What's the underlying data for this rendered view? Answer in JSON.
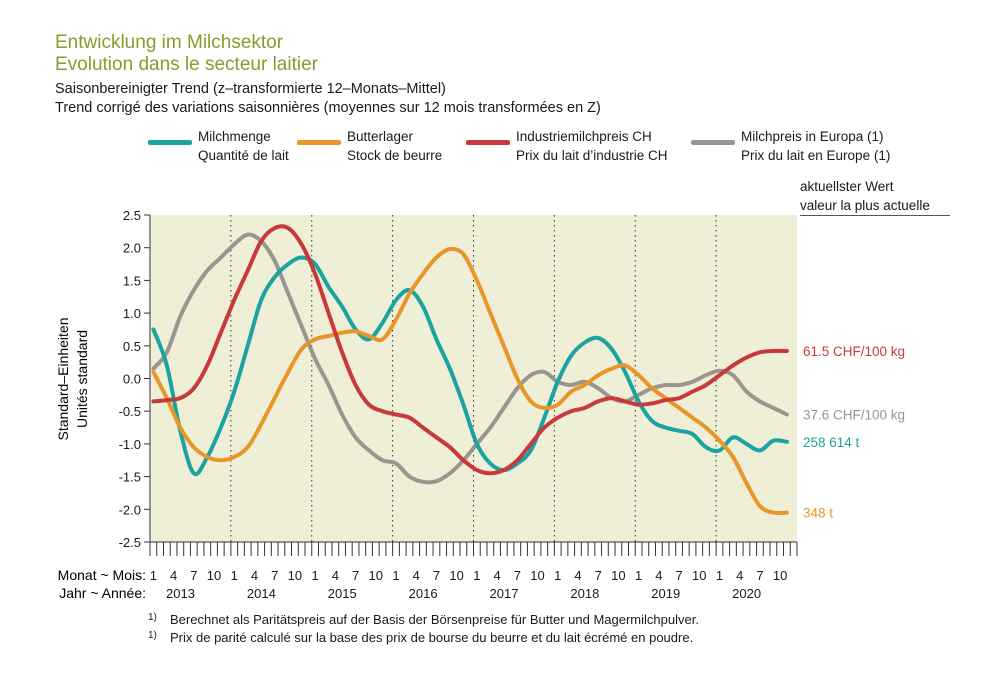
{
  "header": {
    "title_de": "Entwicklung im Milchsektor",
    "title_fr": "Evolution dans le secteur laitier",
    "subtitle_de": "Saisonbereinigter Trend (z–transformierte 12–Monats–Mittel)",
    "subtitle_fr": "Trend corrigé des variations saisonnières (moyennes sur 12 mois transformées en Z)"
  },
  "legend": [
    {
      "de": "Milchmenge",
      "fr": "Quantité de lait",
      "color": "#1aa3a0"
    },
    {
      "de": "Butterlager",
      "fr": "Stock de beurre",
      "color": "#e8952a"
    },
    {
      "de": "Industriemilchpreis CH",
      "fr": "Prix du lait d’industrie CH",
      "color": "#c8393c"
    },
    {
      "de": "Milchpreis in Europa (1)",
      "fr": "Prix du lait en Europe (1)",
      "color": "#9a9590"
    }
  ],
  "current_header": {
    "de": "aktuellster Wert",
    "fr": "valeur la plus actuelle"
  },
  "footnotes": [
    {
      "mark": "1)",
      "text": "Berechnet als Paritätspreis auf der Basis der Börsenpreise für Butter und Magermilchpulver."
    },
    {
      "mark": "1)",
      "text": "Prix de parité calculé sur la base des prix de bourse du beurre et du lait écrémé en poudre."
    }
  ],
  "chart_data": {
    "type": "line",
    "ylabel_de": "Standard–Einheiten",
    "ylabel_fr": "Unités standard",
    "month_row_label": "Monat ~ Mois:",
    "year_row_label": "Jahr ~ Année:",
    "ylim": [
      -2.5,
      2.5
    ],
    "yticks": [
      "2.5",
      "2.0",
      "1.5",
      "1.0",
      "0.5",
      "0.0",
      "-0.5",
      "-1.0",
      "-1.5",
      "-2.0",
      "-2.5"
    ],
    "ytick_values": [
      2.5,
      2.0,
      1.5,
      1.0,
      0.5,
      0.0,
      -0.5,
      -1.0,
      -1.5,
      -2.0,
      -2.5
    ],
    "years": [
      "2013",
      "2014",
      "2015",
      "2016",
      "2017",
      "2018",
      "2019",
      "2020"
    ],
    "month_ticks": [
      "1",
      "4",
      "7",
      "10"
    ],
    "x_start": "2013-01",
    "x_end": "2020-12",
    "plot_bg": "#eeefd6",
    "grid": "vertical dotted at year boundaries",
    "series": [
      {
        "name": "Milchmenge",
        "color": "#1aa3a0",
        "current_label": "258 614 t",
        "points": [
          [
            "2013-01",
            0.75
          ],
          [
            "2013-03",
            0.2
          ],
          [
            "2013-05",
            -0.8
          ],
          [
            "2013-07",
            -1.45
          ],
          [
            "2013-09",
            -1.2
          ],
          [
            "2013-11",
            -0.75
          ],
          [
            "2014-01",
            -0.2
          ],
          [
            "2014-03",
            0.5
          ],
          [
            "2014-05",
            1.2
          ],
          [
            "2014-07",
            1.55
          ],
          [
            "2014-09",
            1.75
          ],
          [
            "2014-11",
            1.85
          ],
          [
            "2015-01",
            1.75
          ],
          [
            "2015-03",
            1.4
          ],
          [
            "2015-05",
            1.1
          ],
          [
            "2015-07",
            0.75
          ],
          [
            "2015-09",
            0.6
          ],
          [
            "2015-11",
            0.85
          ],
          [
            "2016-01",
            1.2
          ],
          [
            "2016-03",
            1.35
          ],
          [
            "2016-05",
            1.1
          ],
          [
            "2016-07",
            0.6
          ],
          [
            "2016-09",
            0.15
          ],
          [
            "2016-11",
            -0.4
          ],
          [
            "2017-01",
            -1.0
          ],
          [
            "2017-03",
            -1.3
          ],
          [
            "2017-05",
            -1.4
          ],
          [
            "2017-07",
            -1.3
          ],
          [
            "2017-09",
            -1.1
          ],
          [
            "2017-11",
            -0.6
          ],
          [
            "2018-01",
            -0.05
          ],
          [
            "2018-03",
            0.35
          ],
          [
            "2018-05",
            0.55
          ],
          [
            "2018-07",
            0.62
          ],
          [
            "2018-09",
            0.45
          ],
          [
            "2018-11",
            0.1
          ],
          [
            "2019-01",
            -0.35
          ],
          [
            "2019-03",
            -0.65
          ],
          [
            "2019-05",
            -0.75
          ],
          [
            "2019-07",
            -0.8
          ],
          [
            "2019-09",
            -0.85
          ],
          [
            "2019-11",
            -1.05
          ],
          [
            "2020-01",
            -1.1
          ],
          [
            "2020-03",
            -0.9
          ],
          [
            "2020-05",
            -1.0
          ],
          [
            "2020-07",
            -1.1
          ],
          [
            "2020-09",
            -0.95
          ],
          [
            "2020-11",
            -0.97
          ]
        ]
      },
      {
        "name": "Butterlager",
        "color": "#e8952a",
        "current_label": "348 t",
        "points": [
          [
            "2013-01",
            0.1
          ],
          [
            "2013-03",
            -0.3
          ],
          [
            "2013-05",
            -0.75
          ],
          [
            "2013-07",
            -1.05
          ],
          [
            "2013-09",
            -1.2
          ],
          [
            "2013-11",
            -1.25
          ],
          [
            "2014-01",
            -1.2
          ],
          [
            "2014-03",
            -1.05
          ],
          [
            "2014-05",
            -0.7
          ],
          [
            "2014-07",
            -0.3
          ],
          [
            "2014-09",
            0.1
          ],
          [
            "2014-11",
            0.45
          ],
          [
            "2015-01",
            0.6
          ],
          [
            "2015-03",
            0.65
          ],
          [
            "2015-05",
            0.7
          ],
          [
            "2015-07",
            0.72
          ],
          [
            "2015-09",
            0.65
          ],
          [
            "2015-11",
            0.6
          ],
          [
            "2016-01",
            0.9
          ],
          [
            "2016-03",
            1.3
          ],
          [
            "2016-05",
            1.6
          ],
          [
            "2016-07",
            1.85
          ],
          [
            "2016-09",
            1.98
          ],
          [
            "2016-11",
            1.9
          ],
          [
            "2017-01",
            1.5
          ],
          [
            "2017-03",
            1.0
          ],
          [
            "2017-05",
            0.5
          ],
          [
            "2017-07",
            0.0
          ],
          [
            "2017-09",
            -0.35
          ],
          [
            "2017-11",
            -0.45
          ],
          [
            "2018-01",
            -0.4
          ],
          [
            "2018-03",
            -0.2
          ],
          [
            "2018-05",
            -0.1
          ],
          [
            "2018-07",
            0.05
          ],
          [
            "2018-09",
            0.15
          ],
          [
            "2018-11",
            0.2
          ],
          [
            "2019-01",
            0.05
          ],
          [
            "2019-03",
            -0.15
          ],
          [
            "2019-05",
            -0.3
          ],
          [
            "2019-07",
            -0.45
          ],
          [
            "2019-09",
            -0.6
          ],
          [
            "2019-11",
            -0.75
          ],
          [
            "2020-01",
            -0.95
          ],
          [
            "2020-03",
            -1.2
          ],
          [
            "2020-05",
            -1.6
          ],
          [
            "2020-07",
            -1.95
          ],
          [
            "2020-09",
            -2.05
          ],
          [
            "2020-11",
            -2.05
          ]
        ]
      },
      {
        "name": "Industriemilchpreis CH",
        "color": "#c8393c",
        "current_label": "61.5 CHF/100 kg",
        "points": [
          [
            "2013-01",
            -0.35
          ],
          [
            "2013-03",
            -0.33
          ],
          [
            "2013-05",
            -0.3
          ],
          [
            "2013-07",
            -0.15
          ],
          [
            "2013-09",
            0.2
          ],
          [
            "2013-11",
            0.7
          ],
          [
            "2014-01",
            1.2
          ],
          [
            "2014-03",
            1.65
          ],
          [
            "2014-05",
            2.1
          ],
          [
            "2014-07",
            2.3
          ],
          [
            "2014-09",
            2.3
          ],
          [
            "2014-11",
            2.05
          ],
          [
            "2015-01",
            1.6
          ],
          [
            "2015-03",
            1.0
          ],
          [
            "2015-05",
            0.4
          ],
          [
            "2015-07",
            -0.1
          ],
          [
            "2015-09",
            -0.4
          ],
          [
            "2015-11",
            -0.5
          ],
          [
            "2016-01",
            -0.55
          ],
          [
            "2016-03",
            -0.6
          ],
          [
            "2016-05",
            -0.75
          ],
          [
            "2016-07",
            -0.9
          ],
          [
            "2016-09",
            -1.05
          ],
          [
            "2016-11",
            -1.25
          ],
          [
            "2017-01",
            -1.4
          ],
          [
            "2017-03",
            -1.45
          ],
          [
            "2017-05",
            -1.4
          ],
          [
            "2017-07",
            -1.25
          ],
          [
            "2017-09",
            -1.0
          ],
          [
            "2017-11",
            -0.75
          ],
          [
            "2018-01",
            -0.6
          ],
          [
            "2018-03",
            -0.5
          ],
          [
            "2018-05",
            -0.45
          ],
          [
            "2018-07",
            -0.35
          ],
          [
            "2018-09",
            -0.3
          ],
          [
            "2018-11",
            -0.35
          ],
          [
            "2019-01",
            -0.4
          ],
          [
            "2019-03",
            -0.38
          ],
          [
            "2019-05",
            -0.33
          ],
          [
            "2019-07",
            -0.3
          ],
          [
            "2019-09",
            -0.2
          ],
          [
            "2019-11",
            -0.1
          ],
          [
            "2020-01",
            0.05
          ],
          [
            "2020-03",
            0.2
          ],
          [
            "2020-05",
            0.32
          ],
          [
            "2020-07",
            0.4
          ],
          [
            "2020-09",
            0.42
          ],
          [
            "2020-11",
            0.42
          ]
        ]
      },
      {
        "name": "Milchpreis in Europa (1)",
        "color": "#9a9590",
        "current_label": "37.6 CHF/100 kg",
        "points": [
          [
            "2013-01",
            0.15
          ],
          [
            "2013-03",
            0.4
          ],
          [
            "2013-05",
            0.95
          ],
          [
            "2013-07",
            1.35
          ],
          [
            "2013-09",
            1.65
          ],
          [
            "2013-11",
            1.85
          ],
          [
            "2014-01",
            2.05
          ],
          [
            "2014-03",
            2.2
          ],
          [
            "2014-05",
            2.1
          ],
          [
            "2014-07",
            1.8
          ],
          [
            "2014-09",
            1.3
          ],
          [
            "2014-11",
            0.8
          ],
          [
            "2015-01",
            0.3
          ],
          [
            "2015-03",
            -0.1
          ],
          [
            "2015-05",
            -0.55
          ],
          [
            "2015-07",
            -0.9
          ],
          [
            "2015-09",
            -1.1
          ],
          [
            "2015-11",
            -1.25
          ],
          [
            "2016-01",
            -1.3
          ],
          [
            "2016-03",
            -1.5
          ],
          [
            "2016-05",
            -1.58
          ],
          [
            "2016-07",
            -1.57
          ],
          [
            "2016-09",
            -1.45
          ],
          [
            "2016-11",
            -1.25
          ],
          [
            "2017-01",
            -1.0
          ],
          [
            "2017-03",
            -0.75
          ],
          [
            "2017-05",
            -0.45
          ],
          [
            "2017-07",
            -0.15
          ],
          [
            "2017-09",
            0.05
          ],
          [
            "2017-11",
            0.1
          ],
          [
            "2018-01",
            -0.05
          ],
          [
            "2018-03",
            -0.1
          ],
          [
            "2018-05",
            -0.05
          ],
          [
            "2018-07",
            -0.15
          ],
          [
            "2018-09",
            -0.3
          ],
          [
            "2018-11",
            -0.35
          ],
          [
            "2019-01",
            -0.25
          ],
          [
            "2019-03",
            -0.15
          ],
          [
            "2019-05",
            -0.1
          ],
          [
            "2019-07",
            -0.1
          ],
          [
            "2019-09",
            -0.05
          ],
          [
            "2019-11",
            0.05
          ],
          [
            "2020-01",
            0.12
          ],
          [
            "2020-03",
            0.05
          ],
          [
            "2020-05",
            -0.2
          ],
          [
            "2020-07",
            -0.35
          ],
          [
            "2020-09",
            -0.45
          ],
          [
            "2020-11",
            -0.55
          ]
        ]
      }
    ]
  }
}
